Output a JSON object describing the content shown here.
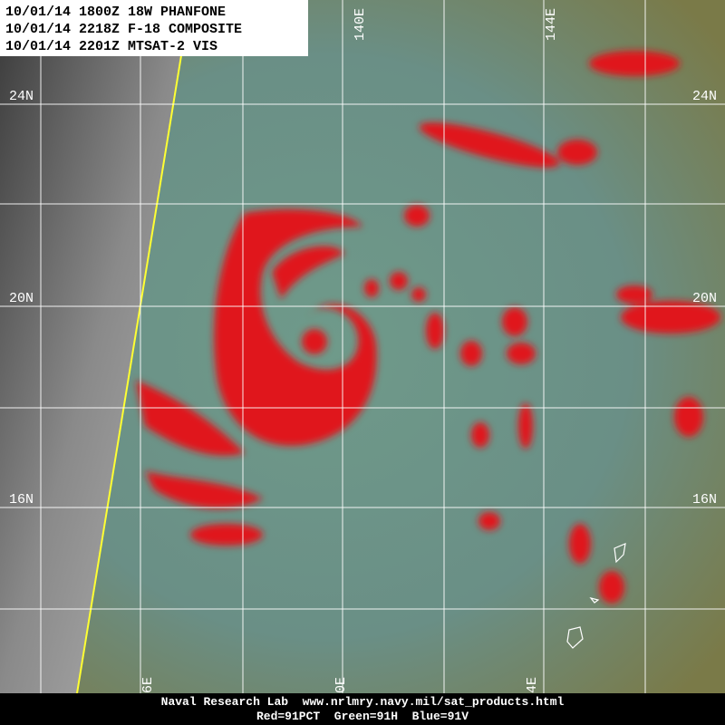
{
  "header": {
    "lines": [
      "10/01/14 1800Z 18W PHANFONE",
      "10/01/14 2218Z F-18 COMPOSITE",
      "10/01/14 2201Z MTSAT-2 VIS"
    ]
  },
  "longitude_labels": {
    "top": [
      "140E",
      "144E"
    ],
    "bottom": [
      "6E",
      "0E",
      "4E"
    ]
  },
  "latitude_labels": {
    "left": [
      "24N",
      "20N",
      "16N"
    ],
    "right": [
      "24N",
      "20N",
      "16N"
    ]
  },
  "footer": {
    "lines": [
      "Naval Research Lab  www.nrlmry.navy.mil/sat_products.html",
      "Red=91PCT  Green=91H  Blue=91V"
    ]
  }
}
